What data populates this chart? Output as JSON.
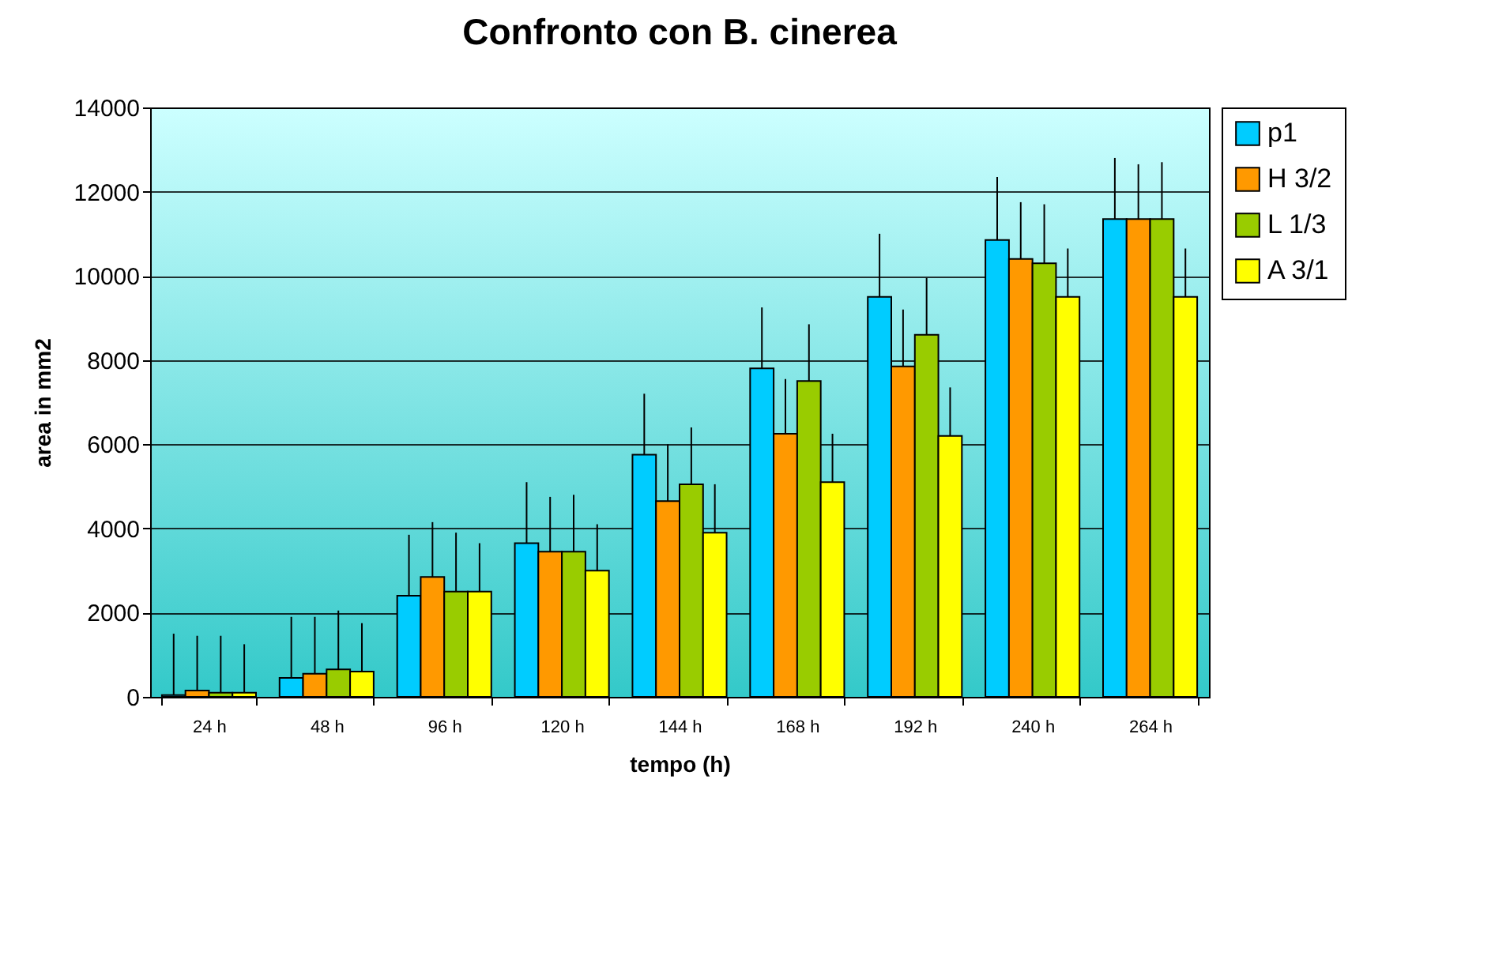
{
  "chart_data": {
    "type": "bar",
    "title": "Confronto con B. cinerea",
    "xlabel": "tempo (h)",
    "ylabel": "area in mm2",
    "categories": [
      "24 h",
      "48 h",
      "96 h",
      "120 h",
      "144 h",
      "168 h",
      "192 h",
      "240 h",
      "264 h"
    ],
    "series": [
      {
        "name": "p1",
        "color": "#00ccff",
        "values": [
          40,
          450,
          2400,
          3650,
          5750,
          7800,
          9500,
          10850,
          11350
        ],
        "errors": [
          [
            40,
            1500
          ],
          [
            450,
            1900
          ],
          [
            2400,
            3850
          ],
          [
            3650,
            5100
          ],
          [
            5750,
            7200
          ],
          [
            7800,
            9250
          ],
          [
            9500,
            11000
          ],
          [
            10850,
            12350
          ],
          [
            11350,
            12800
          ]
        ]
      },
      {
        "name": "H 3/2",
        "color": "#ff9900",
        "values": [
          150,
          550,
          2850,
          3450,
          4650,
          6250,
          7850,
          10400,
          11350
        ],
        "errors": [
          [
            150,
            1450
          ],
          [
            550,
            1900
          ],
          [
            2850,
            4150
          ],
          [
            3450,
            4750
          ],
          [
            4650,
            6000
          ],
          [
            6250,
            7550
          ],
          [
            7850,
            9200
          ],
          [
            10400,
            11750
          ],
          [
            11350,
            12650
          ]
        ]
      },
      {
        "name": "L 1/3",
        "color": "#99cc00",
        "values": [
          100,
          650,
          2500,
          3450,
          5050,
          7500,
          8600,
          10300,
          11350
        ],
        "errors": [
          [
            100,
            1450
          ],
          [
            650,
            2050
          ],
          [
            2500,
            3900
          ],
          [
            3450,
            4800
          ],
          [
            5050,
            6400
          ],
          [
            7500,
            8850
          ],
          [
            8600,
            9950
          ],
          [
            10300,
            11700
          ],
          [
            11350,
            12700
          ]
        ]
      },
      {
        "name": "A 3/1",
        "color": "#ffff00",
        "values": [
          100,
          600,
          2500,
          3000,
          3900,
          5100,
          6200,
          9500,
          9500
        ],
        "errors": [
          [
            100,
            1250
          ],
          [
            600,
            1750
          ],
          [
            2500,
            3650
          ],
          [
            3000,
            4100
          ],
          [
            3900,
            5050
          ],
          [
            5100,
            6250
          ],
          [
            6200,
            7350
          ],
          [
            9500,
            10650
          ],
          [
            9500,
            10650
          ]
        ]
      }
    ],
    "ylim": [
      0,
      14000
    ],
    "yticks": [
      0,
      2000,
      4000,
      6000,
      8000,
      10000,
      12000,
      14000
    ],
    "grid": "y",
    "legend": "right"
  }
}
